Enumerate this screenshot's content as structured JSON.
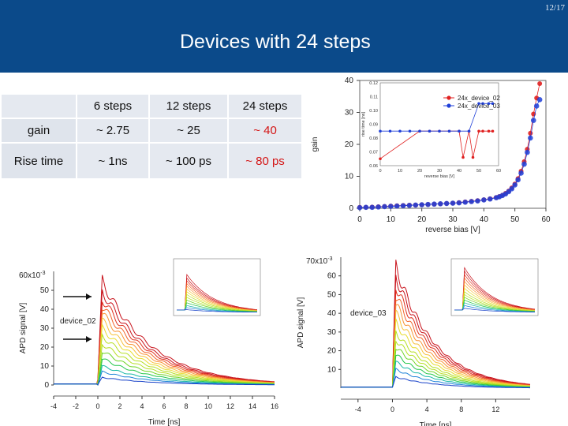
{
  "slide": {
    "number": "12/17",
    "title": "Devices with 24 steps"
  },
  "table": {
    "headers": [
      "",
      "6 steps",
      "12 steps",
      "24 steps"
    ],
    "rows": [
      {
        "label": "gain",
        "cells": [
          "~ 2.75",
          "~ 25",
          "~ 40"
        ]
      },
      {
        "label": "Rise time",
        "cells": [
          "~ 1ns",
          "~ 100 ps",
          "~ 80 ps"
        ]
      }
    ]
  },
  "chart_data": [
    {
      "type": "scatter",
      "xlabel": "reverse bias [V]",
      "ylabel": "gain",
      "xlim": [
        0,
        60
      ],
      "ylim": [
        0,
        40
      ],
      "xticks": [
        "0",
        "10",
        "20",
        "30",
        "40",
        "50",
        "60"
      ],
      "yticks": [
        "0",
        "10",
        "20",
        "30",
        "40"
      ],
      "series": [
        {
          "name": "24x_device_02",
          "color": "#e02020",
          "x": [
            0,
            2,
            4,
            6,
            8,
            10,
            12,
            14,
            16,
            18,
            20,
            22,
            24,
            26,
            28,
            30,
            32,
            34,
            36,
            38,
            40,
            42,
            44,
            45,
            46,
            47,
            48,
            49,
            50,
            51,
            52,
            53,
            54,
            55,
            56,
            57,
            58
          ],
          "y": [
            0.3,
            0.3,
            0.4,
            0.5,
            0.6,
            0.7,
            0.8,
            0.9,
            1.0,
            1.0,
            1.1,
            1.2,
            1.3,
            1.4,
            1.5,
            1.6,
            1.8,
            2.0,
            2.2,
            2.4,
            2.7,
            3.0,
            3.4,
            3.7,
            4.1,
            4.7,
            5.4,
            6.4,
            7.6,
            9.3,
            11.6,
            14.6,
            18.5,
            23.5,
            29.5,
            34.5,
            39.0
          ]
        },
        {
          "name": "24x_device_03",
          "color": "#1f3fd8",
          "x": [
            0,
            2,
            4,
            6,
            8,
            10,
            12,
            14,
            16,
            18,
            20,
            22,
            24,
            26,
            28,
            30,
            32,
            34,
            36,
            38,
            40,
            42,
            44,
            45,
            46,
            47,
            48,
            49,
            50,
            51,
            52,
            53,
            54,
            55,
            56,
            57,
            58
          ],
          "y": [
            0.2,
            0.3,
            0.3,
            0.4,
            0.5,
            0.6,
            0.7,
            0.8,
            0.9,
            1.0,
            1.1,
            1.2,
            1.3,
            1.4,
            1.5,
            1.6,
            1.7,
            1.9,
            2.1,
            2.3,
            2.6,
            2.9,
            3.3,
            3.6,
            4.0,
            4.5,
            5.2,
            6.1,
            7.3,
            8.9,
            11.0,
            13.8,
            17.5,
            22.0,
            27.5,
            32.0,
            34.0
          ]
        }
      ],
      "inset": {
        "xlabel": "reverse bias [V]",
        "ylabel": "rise time [ns]",
        "xlim": [
          0,
          60
        ],
        "ylim": [
          0.06,
          0.12
        ],
        "xticks": [
          "0",
          "10",
          "20",
          "30",
          "40",
          "50",
          "60"
        ],
        "yticks": [
          "0.06",
          "0.07",
          "0.08",
          "0.09",
          "0.10",
          "0.11",
          "0.12"
        ],
        "series": [
          {
            "name": "24x_device_02",
            "color": "#e02020",
            "x": [
              0,
              20,
              25,
              30,
              35,
              40,
              42,
              45,
              47,
              50,
              52,
              55,
              57
            ],
            "y": [
              0.065,
              0.085,
              0.085,
              0.085,
              0.085,
              0.085,
              0.066,
              0.085,
              0.066,
              0.085,
              0.085,
              0.085,
              0.085
            ]
          },
          {
            "name": "24x_device_03",
            "color": "#1f3fd8",
            "x": [
              0,
              5,
              10,
              15,
              20,
              25,
              30,
              35,
              40,
              45,
              50,
              52,
              55,
              57
            ],
            "y": [
              0.085,
              0.085,
              0.085,
              0.085,
              0.085,
              0.085,
              0.085,
              0.085,
              0.085,
              0.085,
              0.105,
              0.105,
              0.105,
              0.105
            ]
          }
        ]
      }
    },
    {
      "type": "line",
      "annotation": "device_02",
      "xlabel": "Time [ns]",
      "ylabel": "APD signal [V]",
      "ymultiplier": "60x10",
      "xlim": [
        -4,
        16
      ],
      "ylim": [
        0,
        60
      ],
      "xticks": [
        "-4",
        "-2",
        "0",
        "2",
        "4",
        "6",
        "8",
        "10",
        "12",
        "14",
        "16"
      ],
      "yticks": [
        "0",
        "10",
        "20",
        "30",
        "40",
        "50"
      ],
      "palette": [
        "#c8121b",
        "#e0301d",
        "#f2642b",
        "#f89436",
        "#f7c13a",
        "#e7dc2e",
        "#b6df24",
        "#6fd424",
        "#23c64a",
        "#18b8a6",
        "#1f83d8",
        "#1640c8"
      ],
      "peaks": [
        55,
        50,
        46,
        42,
        38,
        34,
        30,
        26,
        22,
        18,
        14,
        10,
        7,
        4
      ]
    },
    {
      "type": "line",
      "annotation": "device_03",
      "xlabel": "Time [ns]",
      "ylabel": "APD signal [V]",
      "ymultiplier": "70x10",
      "xlim": [
        -6,
        16
      ],
      "ylim": [
        0,
        70
      ],
      "xticks": [
        "-4",
        "0",
        "4",
        "8",
        "12"
      ],
      "yticks": [
        "10",
        "20",
        "30",
        "40",
        "50",
        "60"
      ],
      "palette": [
        "#c8121b",
        "#e0301d",
        "#f2642b",
        "#f89436",
        "#f7c13a",
        "#e7dc2e",
        "#b6df24",
        "#6fd424",
        "#23c64a",
        "#18b8a6",
        "#1f83d8",
        "#1640c8"
      ],
      "peaks": [
        65,
        60,
        55,
        50,
        45,
        40,
        35,
        30,
        26,
        22,
        18,
        14,
        10,
        6
      ]
    }
  ]
}
